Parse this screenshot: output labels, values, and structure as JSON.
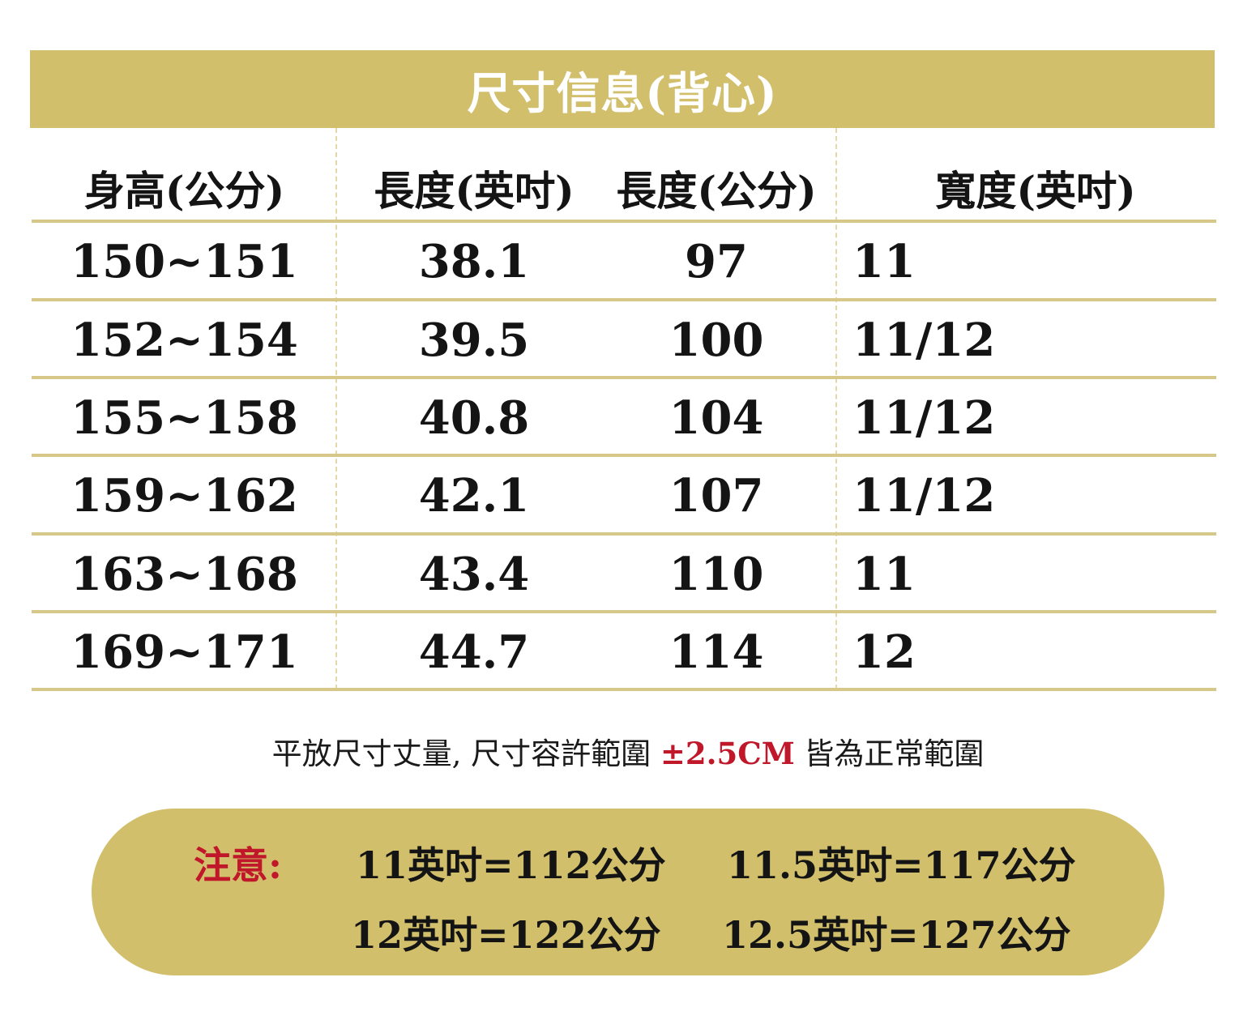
{
  "title": "尺寸信息(背心)",
  "headers": [
    "身高(公分)",
    "長度(英吋)",
    "長度(公分)",
    "寬度(英吋)"
  ],
  "rows": [
    [
      "150~151",
      "38.1",
      "97",
      "11"
    ],
    [
      "152~154",
      "39.5",
      "100",
      "11/12"
    ],
    [
      "155~158",
      "40.8",
      "104",
      "11/12"
    ],
    [
      "159~162",
      "42.1",
      "107",
      "11/12"
    ],
    [
      "163~168",
      "43.4",
      "110",
      "11"
    ],
    [
      "169~171",
      "44.7",
      "114",
      "12"
    ]
  ],
  "note": {
    "before": "平放尺寸丈量, 尺寸容許範圍 ",
    "highlight": "±2.5CM",
    "after": " 皆為正常範圍"
  },
  "notice": {
    "label": "注意:",
    "items": [
      "11英吋=112公分",
      "11.5英吋=117公分",
      "12英吋=122公分",
      "12.5英吋=127公分"
    ]
  },
  "colors": {
    "gold": "#d1bf6c",
    "red": "#c0172a"
  }
}
